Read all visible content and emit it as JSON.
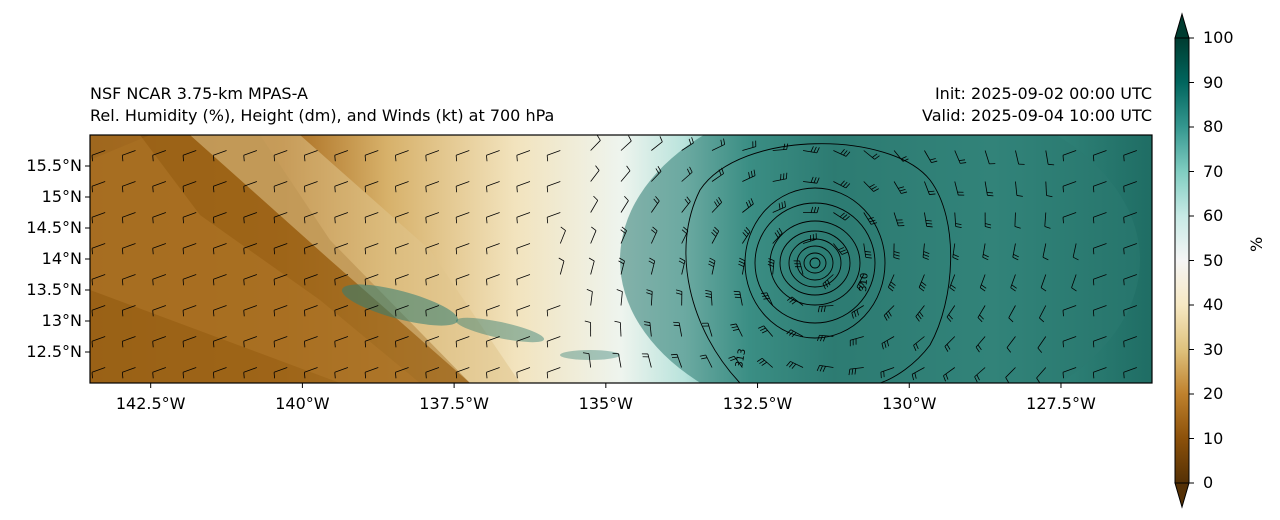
{
  "header": {
    "model": "NSF NCAR 3.75-km MPAS-A",
    "product": "Rel. Humidity (%), Height (dm), and Winds (kt) at 700 hPa",
    "init": "Init: 2025-09-02 00:00 UTC",
    "valid": "Valid: 2025-09-04 10:00 UTC"
  },
  "map": {
    "lon_range": [
      -143.5,
      -126.0
    ],
    "lat_range": [
      12.0,
      16.0
    ],
    "lat_ticks": [
      {
        "value": 15.5,
        "label": "15.5°N"
      },
      {
        "value": 15.0,
        "label": "15°N"
      },
      {
        "value": 14.5,
        "label": "14.5°N"
      },
      {
        "value": 14.0,
        "label": "14°N"
      },
      {
        "value": 13.5,
        "label": "13.5°N"
      },
      {
        "value": 13.0,
        "label": "13°N"
      },
      {
        "value": 12.5,
        "label": "12.5°N"
      }
    ],
    "lon_ticks": [
      {
        "value": -142.5,
        "label": "142.5°W"
      },
      {
        "value": -140.0,
        "label": "140°W"
      },
      {
        "value": -137.5,
        "label": "137.5°W"
      },
      {
        "value": -135.0,
        "label": "135°W"
      },
      {
        "value": -132.5,
        "label": "132.5°W"
      },
      {
        "value": -130.0,
        "label": "130°W"
      },
      {
        "value": -127.5,
        "label": "127.5°W"
      }
    ],
    "cyclone_center": {
      "lon": -131.5,
      "lat": 13.9
    },
    "height_contour_labels": [
      "310",
      "313",
      "310",
      "305"
    ]
  },
  "colorbar": {
    "unit": "%",
    "ticks": [
      "0",
      "10",
      "20",
      "30",
      "40",
      "50",
      "60",
      "70",
      "80",
      "90",
      "100"
    ],
    "colormap": "BrBG",
    "colors": [
      "#543005",
      "#8c510a",
      "#bf812d",
      "#dfc27d",
      "#f6e8c3",
      "#f5f5f5",
      "#c7eae5",
      "#80cdc1",
      "#35978f",
      "#01665e",
      "#003c30"
    ]
  }
}
